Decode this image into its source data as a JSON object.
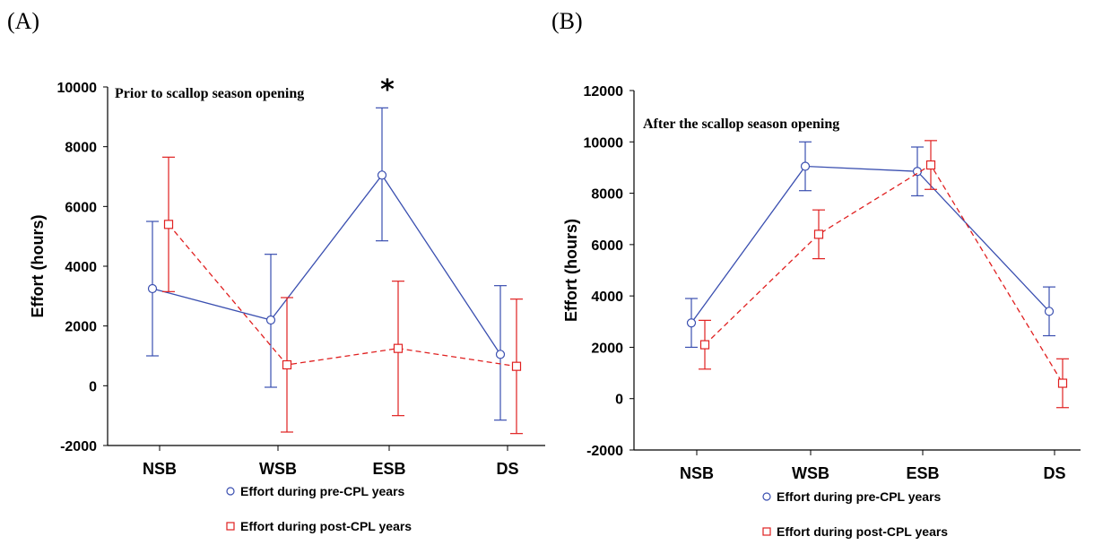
{
  "colors": {
    "pre": "#3a4fb0",
    "post": "#e02020"
  },
  "chart_data": [
    {
      "type": "line",
      "panel_label": "(A)",
      "title": "Prior to scallop season opening",
      "ylabel": "Effort (hours)",
      "xlabel": "",
      "categories": [
        "NSB",
        "WSB",
        "ESB",
        "DS"
      ],
      "ylim": [
        -2000,
        10000
      ],
      "yticks": [
        -2000,
        0,
        2000,
        4000,
        6000,
        8000,
        10000
      ],
      "annotation": "*",
      "series": [
        {
          "name": "Effort during pre-CPL years",
          "marker": "circle",
          "dash": "solid",
          "values": [
            3250,
            2200,
            7050,
            1050
          ],
          "lower": [
            1000,
            -50,
            4850,
            -1150
          ],
          "upper": [
            5500,
            4400,
            9300,
            3350
          ]
        },
        {
          "name": "Effort during post-CPL years",
          "marker": "square",
          "dash": "dashed",
          "values": [
            5400,
            700,
            1250,
            650
          ],
          "lower": [
            3150,
            -1550,
            -1000,
            -1600
          ],
          "upper": [
            7650,
            2950,
            3500,
            2900
          ]
        }
      ]
    },
    {
      "type": "line",
      "panel_label": "(B)",
      "title": "After the scallop season opening",
      "ylabel": "Effort (hours)",
      "xlabel": "",
      "categories": [
        "NSB",
        "WSB",
        "ESB",
        "DS"
      ],
      "ylim": [
        -2000,
        12000
      ],
      "yticks": [
        -2000,
        0,
        2000,
        4000,
        6000,
        8000,
        10000,
        12000
      ],
      "series": [
        {
          "name": "Effort during pre-CPL years",
          "marker": "circle",
          "dash": "solid",
          "values": [
            2950,
            9050,
            8850,
            3400
          ],
          "lower": [
            2000,
            8100,
            7900,
            2450
          ],
          "upper": [
            3900,
            10000,
            9800,
            4350
          ]
        },
        {
          "name": "Effort during post-CPL years",
          "marker": "square",
          "dash": "dashed",
          "values": [
            2100,
            6400,
            9100,
            600
          ],
          "lower": [
            1150,
            5450,
            8150,
            -350
          ],
          "upper": [
            3050,
            7350,
            10050,
            1550
          ]
        }
      ]
    }
  ]
}
